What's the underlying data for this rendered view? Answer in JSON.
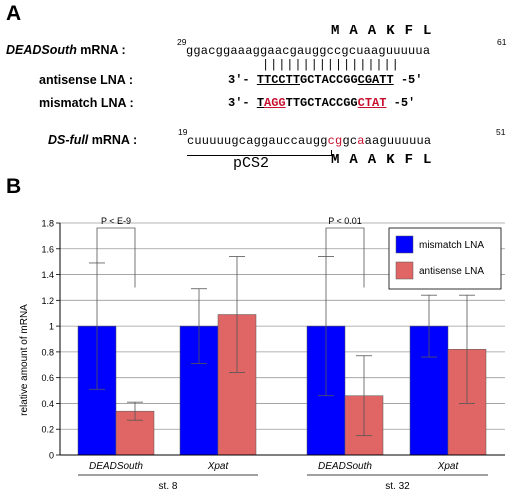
{
  "panel_a": {
    "letter": "A",
    "ds_label": "DEADSouth",
    "mrna_suffix": " mRNA :",
    "ds_aa": "MAAKFL",
    "ds_start": "29",
    "ds_end": "61",
    "ds_seq": "ggacggaaaggaacgauggccgcuaaguuuuua",
    "pairs": "|||||||||||||||||",
    "antisense_label": "antisense LNA :",
    "mismatch_label": "mismatch LNA :",
    "prime3": "3'-",
    "prime5": "-5'",
    "antisense": {
      "s1": "TTCCTT",
      "s2": "GCTACCGG",
      "s3": "CGATT"
    },
    "mismatch": {
      "s1": "T",
      "s2": "AGG",
      "s3": "TTGCTACCGG",
      "s4": "CTAT"
    },
    "dsfull_label": "DS-full",
    "dsfull_start": "19",
    "dsfull_end": "51",
    "dsfull_seq": {
      "s1": "cuuuuugcaggauccaugg",
      "s2": "c",
      "s3": "g",
      "s4": "gc",
      "s5": "a",
      "s6": "aaguuuuua"
    },
    "pcs2": "pCS2",
    "dsfull_aa": "MAAKFL"
  },
  "panel_b": {
    "letter": "B",
    "colors": {
      "mismatch": "#0000ff",
      "antisense": "#e06666"
    }
  },
  "chart_data": {
    "type": "bar",
    "ylabel": "relative amount of mRNA",
    "ylim": [
      0,
      1.8
    ],
    "yticks": [
      "0",
      "0.2",
      "0.4",
      "0.6",
      "0.8",
      "1",
      "1.2",
      "1.4",
      "1.6",
      "1.8"
    ],
    "categories": [
      "DEADSouth",
      "Xpat",
      "DEADSouth",
      "Xpat"
    ],
    "stages": [
      "st. 8",
      "st. 32"
    ],
    "series": [
      {
        "name": "mismatch LNA",
        "values": [
          1.0,
          1.0,
          1.0,
          1.0
        ],
        "err": [
          0.49,
          0.29,
          0.54,
          0.24
        ]
      },
      {
        "name": "antisense LNA",
        "values": [
          0.34,
          1.09,
          0.46,
          0.82
        ],
        "err": [
          0.07,
          0.45,
          0.31,
          0.42
        ]
      }
    ],
    "annotations": [
      "P < E-9",
      "P < 0.01"
    ],
    "legend": "top-right"
  }
}
